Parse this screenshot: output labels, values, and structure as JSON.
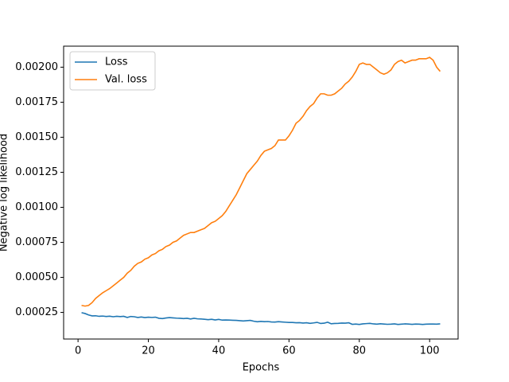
{
  "chart_data": {
    "type": "line",
    "xlabel": "Epochs",
    "ylabel": "Negative log likelihood",
    "x": [
      1,
      2,
      3,
      4,
      5,
      6,
      7,
      8,
      9,
      10,
      11,
      12,
      13,
      14,
      15,
      16,
      17,
      18,
      19,
      20,
      21,
      22,
      23,
      24,
      25,
      26,
      27,
      28,
      29,
      30,
      31,
      32,
      33,
      34,
      35,
      36,
      37,
      38,
      39,
      40,
      41,
      42,
      43,
      44,
      45,
      46,
      47,
      48,
      49,
      50,
      51,
      52,
      53,
      54,
      55,
      56,
      57,
      58,
      59,
      60,
      61,
      62,
      63,
      64,
      65,
      66,
      67,
      68,
      69,
      70,
      71,
      72,
      73,
      74,
      75,
      76,
      77,
      78,
      79,
      80,
      81,
      82,
      83,
      84,
      85,
      86,
      87,
      88,
      89,
      90,
      91,
      92,
      93,
      94,
      95,
      96,
      97,
      98,
      99,
      100,
      101,
      102,
      103
    ],
    "series": [
      {
        "name": "Loss",
        "color": "#1f77b4",
        "values": [
          0.000248,
          0.000242,
          0.000232,
          0.000225,
          0.000226,
          0.000222,
          0.000224,
          0.000221,
          0.000223,
          0.000219,
          0.000222,
          0.00022,
          0.000222,
          0.000214,
          0.000221,
          0.000219,
          0.000214,
          0.000217,
          0.000213,
          0.000216,
          0.000214,
          0.000216,
          0.000208,
          0.000206,
          0.00021,
          0.000213,
          0.000211,
          0.000209,
          0.000208,
          0.000206,
          0.000208,
          0.000203,
          0.000208,
          0.000204,
          0.000203,
          0.000201,
          0.000198,
          0.000201,
          0.000196,
          0.0002,
          0.000195,
          0.000196,
          0.000195,
          0.000194,
          0.000193,
          0.000191,
          0.000189,
          0.000191,
          0.000193,
          0.000187,
          0.000183,
          0.000186,
          0.000184,
          0.000185,
          0.000182,
          0.000181,
          0.000184,
          0.000182,
          0.00018,
          0.000178,
          0.000178,
          0.000176,
          0.000177,
          0.000174,
          0.000176,
          0.000172,
          0.000175,
          0.000179,
          0.000171,
          0.000173,
          0.00018,
          0.000169,
          0.000171,
          0.000172,
          0.000174,
          0.000173,
          0.000176,
          0.000165,
          0.000167,
          0.000164,
          0.000168,
          0.00017,
          0.000172,
          0.000168,
          0.000166,
          0.000169,
          0.000167,
          0.000165,
          0.000166,
          0.000168,
          0.000164,
          0.000166,
          0.000168,
          0.000167,
          0.000165,
          0.000167,
          0.000166,
          0.000164,
          0.000166,
          0.000167,
          0.000167,
          0.000166,
          0.000168
        ]
      },
      {
        "name": "Val. loss",
        "color": "#ff7f0e",
        "values": [
          0.0003,
          0.000295,
          0.0003,
          0.00032,
          0.00035,
          0.00037,
          0.00039,
          0.000405,
          0.00042,
          0.00044,
          0.00046,
          0.00048,
          0.0005,
          0.00053,
          0.00055,
          0.00058,
          0.0006,
          0.00061,
          0.00063,
          0.00064,
          0.00066,
          0.00067,
          0.00069,
          0.0007,
          0.00072,
          0.00073,
          0.00075,
          0.00076,
          0.00078,
          0.0008,
          0.00081,
          0.00082,
          0.00082,
          0.00083,
          0.00084,
          0.00085,
          0.00087,
          0.00089,
          0.0009,
          0.00092,
          0.00094,
          0.00097,
          0.00101,
          0.00105,
          0.00109,
          0.00114,
          0.00119,
          0.00124,
          0.00127,
          0.0013,
          0.00133,
          0.00137,
          0.0014,
          0.00141,
          0.00142,
          0.00144,
          0.00148,
          0.00148,
          0.00148,
          0.00151,
          0.00155,
          0.0016,
          0.00162,
          0.00165,
          0.00169,
          0.00172,
          0.00174,
          0.00178,
          0.00181,
          0.00181,
          0.0018,
          0.0018,
          0.00181,
          0.00183,
          0.00185,
          0.00188,
          0.0019,
          0.00193,
          0.00197,
          0.00202,
          0.00203,
          0.00202,
          0.00202,
          0.002,
          0.00198,
          0.00196,
          0.00195,
          0.00196,
          0.00198,
          0.00202,
          0.00204,
          0.00205,
          0.00203,
          0.00204,
          0.00205,
          0.00205,
          0.00206,
          0.00206,
          0.00206,
          0.00207,
          0.00205,
          0.002,
          0.00197
        ]
      }
    ],
    "xlim": [
      -4.1,
      108.1
    ],
    "xticks": [
      0,
      20,
      40,
      60,
      80,
      100
    ],
    "ylim": [
      6e-05,
      0.00215
    ],
    "yticks": [
      {
        "value": 0.00025,
        "label": "0.00025"
      },
      {
        "value": 0.0005,
        "label": "0.00050"
      },
      {
        "value": 0.00075,
        "label": "0.00075"
      },
      {
        "value": 0.001,
        "label": "0.00100"
      },
      {
        "value": 0.00125,
        "label": "0.00125"
      },
      {
        "value": 0.0015,
        "label": "0.00150"
      },
      {
        "value": 0.00175,
        "label": "0.00175"
      },
      {
        "value": 0.002,
        "label": "0.00200"
      }
    ],
    "legend": "upper left"
  }
}
